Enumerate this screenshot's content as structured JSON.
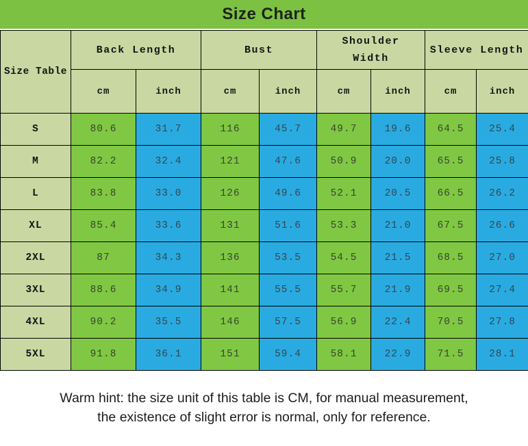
{
  "chart_data": {
    "type": "table",
    "title": "Size Chart",
    "corner_label": "Size Table",
    "column_groups": [
      {
        "label": "Back Length",
        "units": [
          "cm",
          "inch"
        ]
      },
      {
        "label": "Bust",
        "units": [
          "cm",
          "inch"
        ]
      },
      {
        "label": "Shoulder Width",
        "units": [
          "cm",
          "inch"
        ]
      },
      {
        "label": "Sleeve Length",
        "units": [
          "cm",
          "inch"
        ]
      }
    ],
    "unit_row": [
      "cm",
      "inch",
      "cm",
      "inch",
      "cm",
      "inch",
      "cm",
      "inch"
    ],
    "rows": [
      {
        "size": "S",
        "values": [
          "80.6",
          "31.7",
          "116",
          "45.7",
          "49.7",
          "19.6",
          "64.5",
          "25.4"
        ]
      },
      {
        "size": "M",
        "values": [
          "82.2",
          "32.4",
          "121",
          "47.6",
          "50.9",
          "20.0",
          "65.5",
          "25.8"
        ]
      },
      {
        "size": "L",
        "values": [
          "83.8",
          "33.0",
          "126",
          "49.6",
          "52.1",
          "20.5",
          "66.5",
          "26.2"
        ]
      },
      {
        "size": "XL",
        "values": [
          "85.4",
          "33.6",
          "131",
          "51.6",
          "53.3",
          "21.0",
          "67.5",
          "26.6"
        ]
      },
      {
        "size": "2XL",
        "values": [
          "87",
          "34.3",
          "136",
          "53.5",
          "54.5",
          "21.5",
          "68.5",
          "27.0"
        ]
      },
      {
        "size": "3XL",
        "values": [
          "88.6",
          "34.9",
          "141",
          "55.5",
          "55.7",
          "21.9",
          "69.5",
          "27.4"
        ]
      },
      {
        "size": "4XL",
        "values": [
          "90.2",
          "35.5",
          "146",
          "57.5",
          "56.9",
          "22.4",
          "70.5",
          "27.8"
        ]
      },
      {
        "size": "5XL",
        "values": [
          "91.8",
          "36.1",
          "151",
          "59.4",
          "58.1",
          "22.9",
          "71.5",
          "28.1"
        ]
      }
    ]
  },
  "footer": {
    "line1": "Warm hint: the size unit of this table is CM, for manual measurement,",
    "line2": "the existence of slight error is normal, only for reference."
  },
  "colors": {
    "title_bar_green": "#7cc142",
    "header_green": "#c9d8a2",
    "cell_green": "#80c843",
    "cell_blue": "#29abe2",
    "grid_line": "#000000"
  }
}
